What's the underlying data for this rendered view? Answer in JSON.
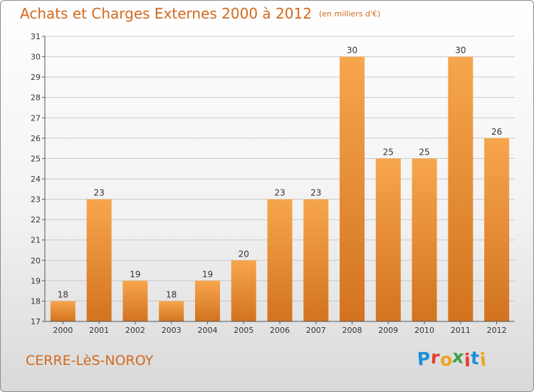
{
  "header": {
    "title": "Achats et Charges Externes 2000 à 2012",
    "unit": "(en milliers d'€)"
  },
  "footer": {
    "place": "CERRE-LèS-NOROY",
    "brand": "Proxiti",
    "brand_colors": [
      "#1e90d6",
      "#e63a2e",
      "#f2a21f",
      "#3aa24a",
      "#e63a2e",
      "#1e90d6",
      "#f2a21f"
    ]
  },
  "colors": {
    "title": "#d2691e",
    "bar_light": "#f7a64d",
    "bar_dark": "#d2731f",
    "grid": "#c8c8c8",
    "axis": "#555555"
  },
  "chart_data": {
    "type": "bar",
    "title": "Achats et Charges Externes 2000 à 2012",
    "subtitle": "(en milliers d'€)",
    "xlabel": "",
    "ylabel": "",
    "categories": [
      "2000",
      "2001",
      "2002",
      "2003",
      "2004",
      "2005",
      "2006",
      "2007",
      "2008",
      "2009",
      "2010",
      "2011",
      "2012"
    ],
    "values": [
      18,
      23,
      19,
      18,
      19,
      20,
      23,
      23,
      30,
      25,
      25,
      30,
      26
    ],
    "ylim": [
      17,
      31
    ],
    "yticks": [
      17,
      18,
      19,
      20,
      21,
      22,
      23,
      24,
      25,
      26,
      27,
      28,
      29,
      30,
      31
    ],
    "grid": true,
    "legend": "none"
  }
}
